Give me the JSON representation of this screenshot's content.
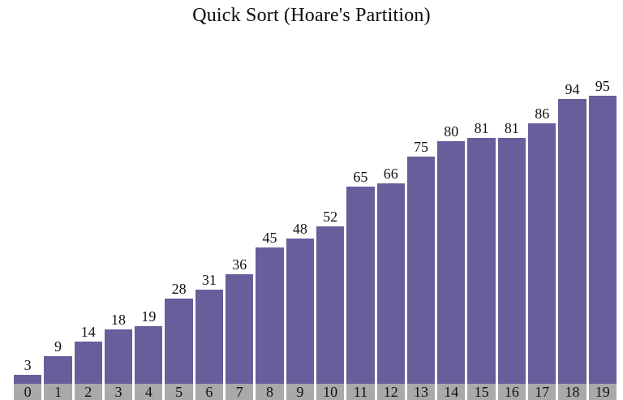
{
  "title": "Quick Sort (Hoare's Partition)",
  "chart_data": {
    "type": "bar",
    "title": "Quick Sort (Hoare's Partition)",
    "categories": [
      "0",
      "1",
      "2",
      "3",
      "4",
      "5",
      "6",
      "7",
      "8",
      "9",
      "10",
      "11",
      "12",
      "13",
      "14",
      "15",
      "16",
      "17",
      "18",
      "19"
    ],
    "values": [
      3,
      9,
      14,
      18,
      19,
      28,
      31,
      36,
      45,
      48,
      52,
      65,
      66,
      75,
      80,
      81,
      81,
      86,
      94,
      95
    ],
    "xlabel": "",
    "ylabel": "",
    "ylim": [
      0,
      95
    ],
    "grid": false,
    "legend": "none",
    "bar_color": "#695d9b",
    "index_strip_color": "#a9a9a9",
    "label_color": "#111111",
    "background_color": "#ffffff"
  }
}
